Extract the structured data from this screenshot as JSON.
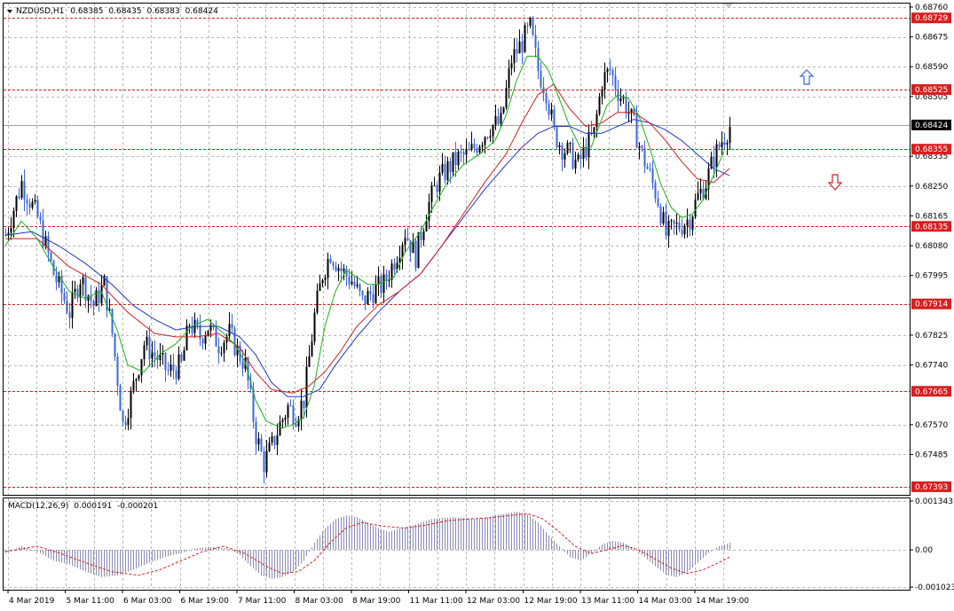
{
  "header": {
    "symbol": "NZDUSD,H1",
    "open": "0.68385",
    "high": "0.68435",
    "low": "0.68383",
    "close": "0.68424"
  },
  "macd_header": {
    "name": "MACD(12,26,9)",
    "main": "0.000191",
    "signal": "-0.000201"
  },
  "colors": {
    "bull_candle": "#000000",
    "bear_candle": "#3a66d8",
    "ma_fast": "#19b219",
    "ma_mid": "#d81e1e",
    "ma_slow": "#2236c8",
    "level_line": "#d81e1e",
    "grid": "#b9b9b9",
    "macd_hist": "#8a8ab4",
    "macd_signal": "#d81e1e",
    "arrow_up": "#2e6ad8",
    "arrow_down": "#d81e1e"
  },
  "chart_data": [
    {
      "type": "candlestick",
      "title": "NZDUSD,H1",
      "ylim": [
        0.6737,
        0.6877
      ],
      "price_ticks": [
        "0.68760",
        "0.68675",
        "0.68590",
        "0.68505",
        "0.68335",
        "0.68250",
        "0.68165",
        "0.68080",
        "0.67995",
        "0.67825",
        "0.67740",
        "0.67570",
        "0.67485"
      ],
      "x_ticks": [
        "4 Mar 2019",
        "5 Mar 11:00",
        "6 Mar 03:00",
        "6 Mar 19:00",
        "7 Mar 11:00",
        "8 Mar 03:00",
        "8 Mar 19:00",
        "11 Mar 11:00",
        "12 Mar 03:00",
        "12 Mar 19:00",
        "13 Mar 11:00",
        "14 Mar 03:00",
        "14 Mar 19:00"
      ],
      "levels": [
        {
          "value": 0.68729,
          "label": "0.68729"
        },
        {
          "value": 0.68525,
          "label": "0.68525"
        },
        {
          "value": 0.68355,
          "label": "0.68355"
        },
        {
          "value": 0.68135,
          "label": "0.68135"
        },
        {
          "value": 0.67914,
          "label": "0.67914"
        },
        {
          "value": 0.67665,
          "label": "0.67665"
        },
        {
          "value": 0.67393,
          "label": "0.67393"
        }
      ],
      "current_price": {
        "value": 0.68424,
        "label": "0.68424"
      },
      "price_path": [
        [
          0,
          0.6811
        ],
        [
          6,
          0.6826
        ],
        [
          12,
          0.6816
        ],
        [
          18,
          0.68
        ],
        [
          24,
          0.6789
        ],
        [
          28,
          0.6799
        ],
        [
          33,
          0.6791
        ],
        [
          37,
          0.6797
        ],
        [
          40,
          0.6783
        ],
        [
          44,
          0.6757
        ],
        [
          47,
          0.6765
        ],
        [
          52,
          0.678
        ],
        [
          57,
          0.6776
        ],
        [
          61,
          0.6772
        ],
        [
          66,
          0.6774
        ],
        [
          69,
          0.6786
        ],
        [
          73,
          0.6782
        ],
        [
          76,
          0.6785
        ],
        [
          80,
          0.678
        ],
        [
          84,
          0.6783
        ],
        [
          87,
          0.6778
        ],
        [
          90,
          0.6774
        ],
        [
          94,
          0.6754
        ],
        [
          97,
          0.6746
        ],
        [
          100,
          0.6751
        ],
        [
          103,
          0.6757
        ],
        [
          106,
          0.6762
        ],
        [
          109,
          0.676
        ],
        [
          112,
          0.6764
        ],
        [
          116,
          0.6788
        ],
        [
          119,
          0.68
        ],
        [
          122,
          0.6806
        ],
        [
          126,
          0.6801
        ],
        [
          130,
          0.6798
        ],
        [
          134,
          0.6792
        ],
        [
          138,
          0.6795
        ],
        [
          142,
          0.6797
        ],
        [
          146,
          0.6804
        ],
        [
          150,
          0.6812
        ],
        [
          154,
          0.6805
        ],
        [
          158,
          0.6818
        ],
        [
          162,
          0.6826
        ],
        [
          166,
          0.683
        ],
        [
          170,
          0.6833
        ],
        [
          174,
          0.6834
        ],
        [
          178,
          0.6838
        ],
        [
          182,
          0.6842
        ],
        [
          186,
          0.6843
        ],
        [
          190,
          0.6861
        ],
        [
          194,
          0.6866
        ],
        [
          197,
          0.687
        ],
        [
          200,
          0.6858
        ],
        [
          203,
          0.6852
        ],
        [
          206,
          0.684
        ],
        [
          209,
          0.6836
        ],
        [
          212,
          0.6834
        ],
        [
          215,
          0.6831
        ],
        [
          218,
          0.6836
        ],
        [
          221,
          0.684
        ],
        [
          224,
          0.6855
        ],
        [
          227,
          0.6858
        ],
        [
          230,
          0.6852
        ],
        [
          233,
          0.6848
        ],
        [
          236,
          0.6842
        ],
        [
          239,
          0.6834
        ],
        [
          242,
          0.6828
        ],
        [
          245,
          0.6821
        ],
        [
          248,
          0.6811
        ],
        [
          251,
          0.6813
        ],
        [
          254,
          0.6814
        ],
        [
          257,
          0.6816
        ],
        [
          260,
          0.6822
        ],
        [
          263,
          0.6826
        ],
        [
          266,
          0.6833
        ],
        [
          269,
          0.6838
        ],
        [
          272,
          0.6842
        ]
      ],
      "ma_fast_path": [
        [
          0,
          0.6808
        ],
        [
          6,
          0.6815
        ],
        [
          12,
          0.681
        ],
        [
          18,
          0.6802
        ],
        [
          24,
          0.6795
        ],
        [
          30,
          0.6793
        ],
        [
          36,
          0.6795
        ],
        [
          42,
          0.6784
        ],
        [
          46,
          0.6774
        ],
        [
          52,
          0.6772
        ],
        [
          58,
          0.6777
        ],
        [
          64,
          0.678
        ],
        [
          70,
          0.6785
        ],
        [
          76,
          0.6787
        ],
        [
          82,
          0.6783
        ],
        [
          86,
          0.678
        ],
        [
          90,
          0.6775
        ],
        [
          94,
          0.6764
        ],
        [
          98,
          0.6758
        ],
        [
          104,
          0.6756
        ],
        [
          108,
          0.6757
        ],
        [
          112,
          0.6759
        ],
        [
          116,
          0.6768
        ],
        [
          120,
          0.6785
        ],
        [
          124,
          0.6795
        ],
        [
          128,
          0.6801
        ],
        [
          132,
          0.6799
        ],
        [
          136,
          0.6797
        ],
        [
          140,
          0.6797
        ],
        [
          146,
          0.6799
        ],
        [
          150,
          0.6806
        ],
        [
          156,
          0.6812
        ],
        [
          160,
          0.6818
        ],
        [
          166,
          0.6826
        ],
        [
          172,
          0.6831
        ],
        [
          178,
          0.6834
        ],
        [
          184,
          0.6838
        ],
        [
          188,
          0.6845
        ],
        [
          192,
          0.6855
        ],
        [
          196,
          0.6862
        ],
        [
          200,
          0.6862
        ],
        [
          204,
          0.6858
        ],
        [
          208,
          0.685
        ],
        [
          212,
          0.6842
        ],
        [
          216,
          0.6836
        ],
        [
          220,
          0.6836
        ],
        [
          226,
          0.6848
        ],
        [
          230,
          0.6851
        ],
        [
          234,
          0.685
        ],
        [
          238,
          0.6845
        ],
        [
          242,
          0.6836
        ],
        [
          246,
          0.6826
        ],
        [
          250,
          0.6819
        ],
        [
          254,
          0.6816
        ],
        [
          258,
          0.6817
        ],
        [
          262,
          0.6821
        ],
        [
          266,
          0.6828
        ],
        [
          270,
          0.6835
        ]
      ],
      "ma_mid_path": [
        [
          0,
          0.681
        ],
        [
          12,
          0.681
        ],
        [
          24,
          0.6802
        ],
        [
          36,
          0.6797
        ],
        [
          46,
          0.6789
        ],
        [
          56,
          0.6783
        ],
        [
          64,
          0.6782
        ],
        [
          72,
          0.6782
        ],
        [
          80,
          0.6783
        ],
        [
          88,
          0.6779
        ],
        [
          94,
          0.6772
        ],
        [
          100,
          0.6767
        ],
        [
          108,
          0.6766
        ],
        [
          114,
          0.6768
        ],
        [
          120,
          0.6772
        ],
        [
          126,
          0.6778
        ],
        [
          132,
          0.6785
        ],
        [
          140,
          0.6791
        ],
        [
          148,
          0.6795
        ],
        [
          156,
          0.68
        ],
        [
          164,
          0.6808
        ],
        [
          172,
          0.6817
        ],
        [
          180,
          0.6826
        ],
        [
          188,
          0.6834
        ],
        [
          194,
          0.6843
        ],
        [
          200,
          0.6851
        ],
        [
          206,
          0.6854
        ],
        [
          212,
          0.6847
        ],
        [
          218,
          0.6842
        ],
        [
          224,
          0.6843
        ],
        [
          230,
          0.6846
        ],
        [
          236,
          0.6846
        ],
        [
          242,
          0.6843
        ],
        [
          248,
          0.6838
        ],
        [
          254,
          0.6832
        ],
        [
          260,
          0.6827
        ],
        [
          266,
          0.6826
        ],
        [
          272,
          0.683
        ]
      ],
      "ma_slow_path": [
        [
          0,
          0.6811
        ],
        [
          10,
          0.6812
        ],
        [
          20,
          0.6808
        ],
        [
          30,
          0.6803
        ],
        [
          40,
          0.6797
        ],
        [
          48,
          0.6791
        ],
        [
          56,
          0.6787
        ],
        [
          64,
          0.6784
        ],
        [
          72,
          0.6785
        ],
        [
          80,
          0.6785
        ],
        [
          88,
          0.6782
        ],
        [
          94,
          0.6777
        ],
        [
          100,
          0.6769
        ],
        [
          106,
          0.6765
        ],
        [
          112,
          0.6765
        ],
        [
          118,
          0.6767
        ],
        [
          124,
          0.6774
        ],
        [
          132,
          0.6782
        ],
        [
          140,
          0.6789
        ],
        [
          148,
          0.6795
        ],
        [
          156,
          0.68
        ],
        [
          164,
          0.6808
        ],
        [
          172,
          0.6816
        ],
        [
          180,
          0.6824
        ],
        [
          188,
          0.6831
        ],
        [
          194,
          0.6836
        ],
        [
          200,
          0.684
        ],
        [
          206,
          0.6842
        ],
        [
          212,
          0.6842
        ],
        [
          218,
          0.684
        ],
        [
          224,
          0.684
        ],
        [
          230,
          0.6842
        ],
        [
          236,
          0.6844
        ],
        [
          242,
          0.6843
        ],
        [
          248,
          0.6841
        ],
        [
          254,
          0.6838
        ],
        [
          260,
          0.6834
        ],
        [
          266,
          0.683
        ],
        [
          272,
          0.6828
        ]
      ]
    },
    {
      "type": "bar",
      "title": "MACD(12,26,9)",
      "ylim": [
        -0.001023,
        0.001343
      ],
      "y_ticks": [
        "0.001343",
        "0.00",
        "-0.001023"
      ],
      "hist_path": [
        [
          0,
          -8e-05
        ],
        [
          6,
          0.0001
        ],
        [
          12,
          -5e-05
        ],
        [
          18,
          -0.0003
        ],
        [
          24,
          -0.0004
        ],
        [
          30,
          -0.0006
        ],
        [
          36,
          -0.00075
        ],
        [
          42,
          -0.0007
        ],
        [
          48,
          -0.00055
        ],
        [
          54,
          -0.00035
        ],
        [
          60,
          -0.0002
        ],
        [
          66,
          -8e-05
        ],
        [
          72,
          5e-05
        ],
        [
          78,
          8e-05
        ],
        [
          84,
          3e-05
        ],
        [
          88,
          -0.00015
        ],
        [
          92,
          -0.00045
        ],
        [
          96,
          -0.0007
        ],
        [
          100,
          -0.0008
        ],
        [
          104,
          -0.00075
        ],
        [
          108,
          -0.0006
        ],
        [
          112,
          -0.0003
        ],
        [
          116,
          0.0002
        ],
        [
          120,
          0.0006
        ],
        [
          124,
          0.00085
        ],
        [
          128,
          0.00095
        ],
        [
          132,
          0.0009
        ],
        [
          136,
          0.00075
        ],
        [
          140,
          0.0006
        ],
        [
          144,
          0.0005
        ],
        [
          148,
          0.0006
        ],
        [
          152,
          0.00065
        ],
        [
          156,
          0.00075
        ],
        [
          160,
          0.00085
        ],
        [
          164,
          0.00088
        ],
        [
          168,
          0.0009
        ],
        [
          172,
          0.00088
        ],
        [
          176,
          0.00085
        ],
        [
          180,
          0.00088
        ],
        [
          184,
          0.00095
        ],
        [
          188,
          0.001
        ],
        [
          192,
          0.00105
        ],
        [
          196,
          0.00098
        ],
        [
          200,
          0.00075
        ],
        [
          204,
          0.0004
        ],
        [
          208,
          0.0001
        ],
        [
          212,
          -0.0002
        ],
        [
          216,
          -0.0003
        ],
        [
          220,
          -0.0001
        ],
        [
          224,
          0.00015
        ],
        [
          228,
          0.00025
        ],
        [
          232,
          0.0002
        ],
        [
          236,
          5e-05
        ],
        [
          240,
          -0.0002
        ],
        [
          244,
          -0.00045
        ],
        [
          248,
          -0.00068
        ],
        [
          252,
          -0.00075
        ],
        [
          256,
          -0.00062
        ],
        [
          260,
          -0.00035
        ],
        [
          264,
          -8e-05
        ],
        [
          268,
          0.0001
        ],
        [
          272,
          0.00019
        ]
      ],
      "signal_path": [
        [
          0,
          -5e-05
        ],
        [
          12,
          0.0001
        ],
        [
          20,
          -8e-05
        ],
        [
          30,
          -0.00035
        ],
        [
          40,
          -0.0006
        ],
        [
          50,
          -0.0007
        ],
        [
          58,
          -0.00055
        ],
        [
          66,
          -0.0003
        ],
        [
          74,
          -5e-05
        ],
        [
          82,
          0.0001
        ],
        [
          90,
          -0.0001
        ],
        [
          98,
          -0.00045
        ],
        [
          104,
          -0.00065
        ],
        [
          110,
          -0.0006
        ],
        [
          116,
          -0.0003
        ],
        [
          122,
          0.0002
        ],
        [
          128,
          0.0006
        ],
        [
          134,
          0.00075
        ],
        [
          142,
          0.00065
        ],
        [
          150,
          0.0006
        ],
        [
          158,
          0.00068
        ],
        [
          166,
          0.0008
        ],
        [
          174,
          0.00085
        ],
        [
          182,
          0.00088
        ],
        [
          190,
          0.00095
        ],
        [
          196,
          0.001
        ],
        [
          202,
          0.00085
        ],
        [
          208,
          0.0005
        ],
        [
          214,
          0.0001
        ],
        [
          220,
          -0.0001
        ],
        [
          226,
          0.0
        ],
        [
          232,
          0.00012
        ],
        [
          238,
          0.0
        ],
        [
          244,
          -0.00025
        ],
        [
          250,
          -0.0005
        ],
        [
          256,
          -0.00065
        ],
        [
          262,
          -0.00055
        ],
        [
          268,
          -0.00035
        ],
        [
          272,
          -0.0002
        ]
      ]
    }
  ]
}
